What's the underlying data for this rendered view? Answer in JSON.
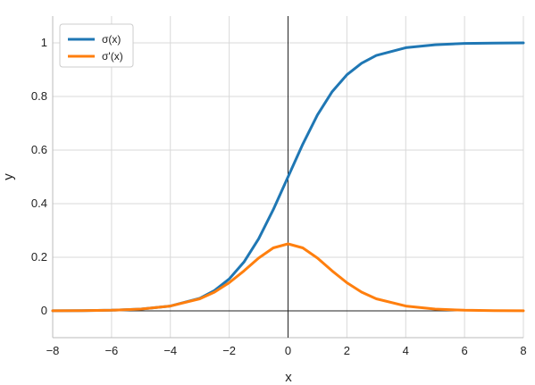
{
  "chart_data": {
    "type": "line",
    "xlabel": "x",
    "ylabel": "y",
    "xlim": [
      -8,
      8
    ],
    "ylim": [
      -0.1,
      1.1
    ],
    "xticks": [
      -8,
      -6,
      -4,
      -2,
      0,
      2,
      4,
      6,
      8
    ],
    "yticks": [
      0,
      0.2,
      0.4,
      0.6,
      0.8,
      1
    ],
    "xtick_labels": [
      "−8",
      "−6",
      "−4",
      "−2",
      "0",
      "2",
      "4",
      "6",
      "8"
    ],
    "ytick_labels": [
      "0",
      "0.2",
      "0.4",
      "0.6",
      "0.8",
      "1"
    ],
    "grid": true,
    "legend_position": "top-left",
    "x": [
      -8,
      -7,
      -6,
      -5,
      -4,
      -3,
      -2.5,
      -2,
      -1.5,
      -1,
      -0.5,
      0,
      0.5,
      1,
      1.5,
      2,
      2.5,
      3,
      4,
      5,
      6,
      7,
      8
    ],
    "series": [
      {
        "name": "σ(x)",
        "color": "#1f77b4",
        "values": [
          0.0003,
          0.0009,
          0.0025,
          0.0067,
          0.018,
          0.047,
          0.076,
          0.119,
          0.182,
          0.269,
          0.378,
          0.5,
          0.622,
          0.731,
          0.818,
          0.881,
          0.924,
          0.953,
          0.982,
          0.993,
          0.998,
          0.999,
          1.0
        ]
      },
      {
        "name": "σ'(x)",
        "color": "#ff7f0e",
        "values": [
          0.0003,
          0.0009,
          0.0025,
          0.0066,
          0.018,
          0.045,
          0.07,
          0.105,
          0.149,
          0.197,
          0.235,
          0.25,
          0.235,
          0.197,
          0.149,
          0.105,
          0.07,
          0.045,
          0.018,
          0.0066,
          0.0025,
          0.0009,
          0.0003
        ]
      }
    ]
  }
}
